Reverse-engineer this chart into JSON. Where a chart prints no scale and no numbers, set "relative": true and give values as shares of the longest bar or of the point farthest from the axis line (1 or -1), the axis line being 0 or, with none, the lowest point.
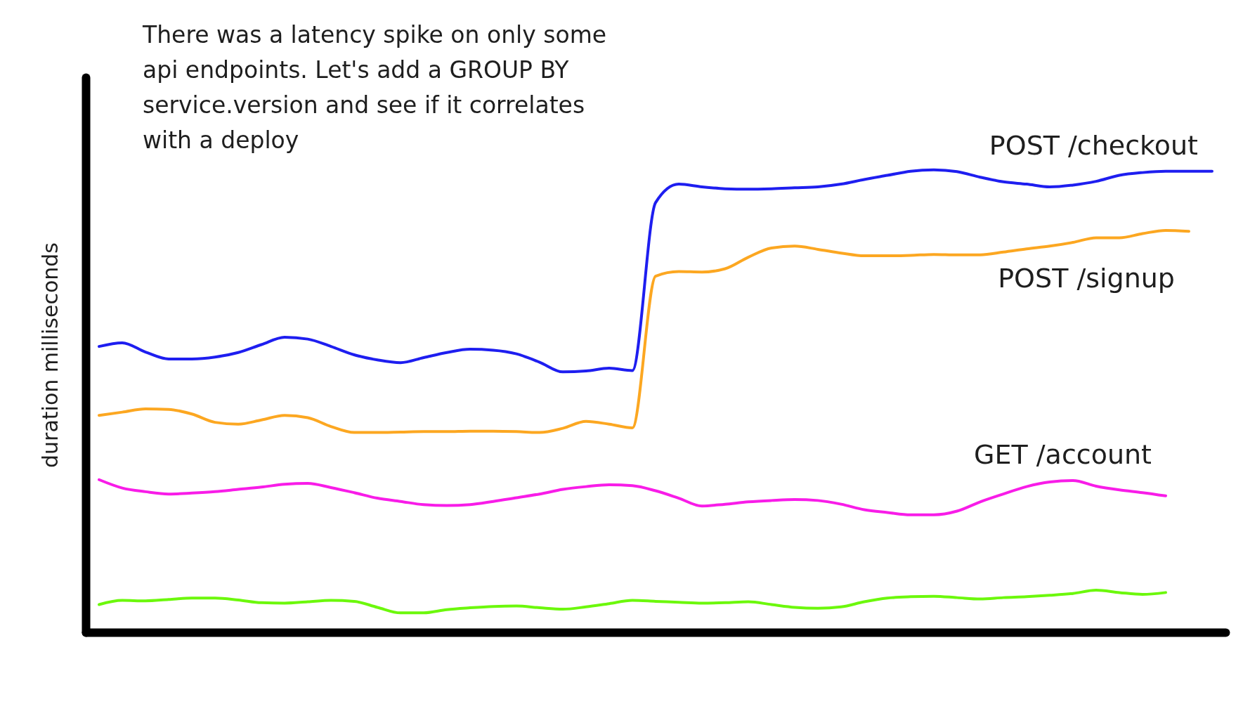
{
  "chart_data": {
    "type": "line",
    "relative": true,
    "ylabel": "duration milliseconds",
    "annotations": [
      "There was a latency spike on only some api endpoints. Let's add a GROUP BY service.version and see if it correlates with a deploy"
    ],
    "categories": [
      null,
      null,
      null,
      null,
      null,
      null,
      null,
      null,
      null,
      null,
      null,
      null,
      null,
      null,
      null,
      null,
      null,
      null,
      null,
      null,
      null,
      null,
      null,
      null,
      null,
      null,
      null,
      null,
      null,
      null,
      null,
      null,
      null,
      null,
      null,
      null,
      null,
      null,
      null,
      null,
      null,
      null,
      null,
      null,
      null,
      null,
      null,
      null,
      null
    ],
    "series": [
      {
        "name": "POST /checkout",
        "color": "#1e1ef0",
        "values": [
          0.618,
          0.626,
          0.606,
          0.591,
          0.591,
          0.595,
          0.605,
          0.622,
          0.638,
          0.634,
          0.618,
          0.6,
          0.589,
          0.583,
          0.594,
          0.605,
          0.612,
          0.61,
          0.602,
          0.584,
          0.563,
          0.565,
          0.571,
          0.566,
          0.929,
          0.969,
          0.963,
          0.959,
          0.958,
          0.959,
          0.961,
          0.963,
          0.969,
          0.979,
          0.988,
          0.997,
          1.0,
          0.996,
          0.984,
          0.974,
          0.969,
          0.963,
          0.967,
          0.975,
          0.988,
          0.994,
          0.997,
          0.997,
          0.997
        ]
      },
      {
        "name": "POST /signup",
        "color": "#fca721",
        "values": [
          0.469,
          0.476,
          0.483,
          0.482,
          0.472,
          0.454,
          0.45,
          0.459,
          0.469,
          0.464,
          0.445,
          0.432,
          0.432,
          0.433,
          0.434,
          0.434,
          0.435,
          0.435,
          0.434,
          0.432,
          0.441,
          0.456,
          0.45,
          0.442,
          0.77,
          0.78,
          0.779,
          0.786,
          0.811,
          0.831,
          0.835,
          0.828,
          0.82,
          0.814,
          0.814,
          0.815,
          0.817,
          0.816,
          0.816,
          0.822,
          0.829,
          0.835,
          0.843,
          0.853,
          0.853,
          0.862,
          0.869,
          0.867,
          null
        ]
      },
      {
        "name": "GET /account",
        "color": "#f81ce8",
        "values": [
          0.33,
          0.312,
          0.304,
          0.299,
          0.301,
          0.304,
          0.309,
          0.314,
          0.32,
          0.322,
          0.313,
          0.302,
          0.29,
          0.283,
          0.276,
          0.274,
          0.276,
          0.283,
          0.291,
          0.299,
          0.309,
          0.315,
          0.319,
          0.317,
          0.306,
          0.29,
          0.273,
          0.277,
          0.282,
          0.285,
          0.287,
          0.285,
          0.277,
          0.265,
          0.259,
          0.254,
          0.254,
          0.262,
          0.282,
          0.299,
          0.315,
          0.325,
          0.328,
          0.316,
          0.308,
          0.302,
          0.295,
          null,
          null
        ]
      },
      {
        "color": "#6cf80c",
        "values": [
          0.06,
          0.069,
          0.068,
          0.071,
          0.074,
          0.074,
          0.07,
          0.064,
          0.063,
          0.066,
          0.069,
          0.067,
          0.054,
          0.042,
          0.042,
          0.049,
          0.053,
          0.056,
          0.057,
          0.053,
          0.05,
          0.055,
          0.062,
          0.069,
          0.067,
          0.065,
          0.063,
          0.064,
          0.066,
          0.06,
          0.054,
          0.052,
          0.055,
          0.066,
          0.074,
          0.077,
          0.078,
          0.075,
          0.072,
          0.075,
          0.077,
          0.08,
          0.084,
          0.091,
          0.086,
          0.082,
          0.086,
          null,
          null
        ]
      }
    ]
  }
}
